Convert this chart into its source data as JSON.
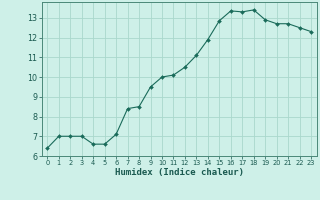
{
  "x": [
    0,
    1,
    2,
    3,
    4,
    5,
    6,
    7,
    8,
    9,
    10,
    11,
    12,
    13,
    14,
    15,
    16,
    17,
    18,
    19,
    20,
    21,
    22,
    23
  ],
  "y": [
    6.4,
    7.0,
    7.0,
    7.0,
    6.6,
    6.6,
    7.1,
    8.4,
    8.5,
    9.5,
    10.0,
    10.1,
    10.5,
    11.1,
    11.9,
    12.85,
    13.35,
    13.3,
    13.4,
    12.9,
    12.7,
    12.7,
    12.5,
    12.3
  ],
  "xlim": [
    -0.5,
    23.5
  ],
  "ylim": [
    6,
    13.8
  ],
  "yticks": [
    6,
    7,
    8,
    9,
    10,
    11,
    12,
    13
  ],
  "xticks": [
    0,
    1,
    2,
    3,
    4,
    5,
    6,
    7,
    8,
    9,
    10,
    11,
    12,
    13,
    14,
    15,
    16,
    17,
    18,
    19,
    20,
    21,
    22,
    23
  ],
  "xlabel": "Humidex (Indice chaleur)",
  "line_color": "#1a6b5a",
  "marker_color": "#1a6b5a",
  "bg_color": "#cef0e8",
  "grid_color": "#aad8cc",
  "axes_color": "#4a8878",
  "tick_label_color": "#1a5a50",
  "xlabel_color": "#1a5a50"
}
